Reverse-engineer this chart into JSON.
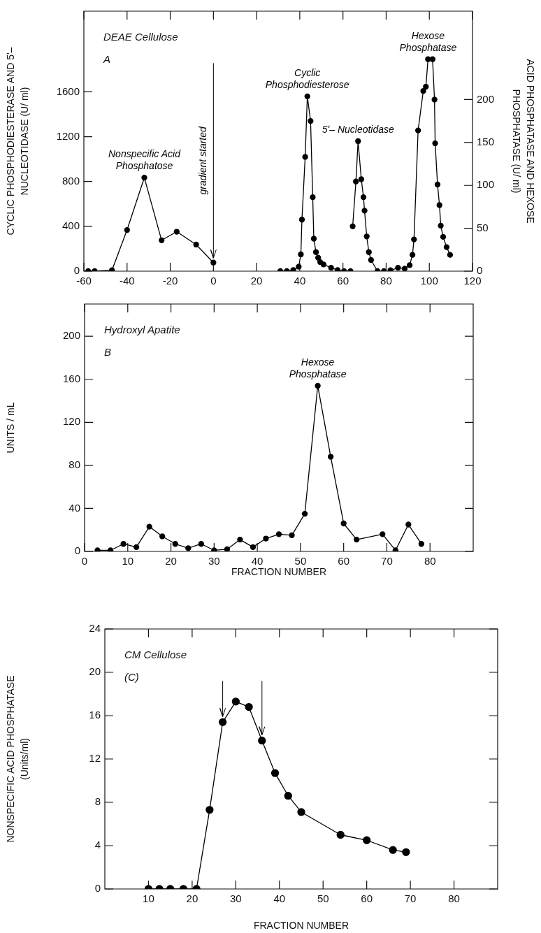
{
  "chart_data": [
    {
      "type": "line",
      "annotations": [
        "DEAE Cellulose",
        "A"
      ],
      "ylabel": "CYCLIC PHOSPHODIESTERASE AND 5ʹ– NUCLEOTIDASE (U/ ml)",
      "y2label": "ACID PHOSPHATASE AND HEXOSE PHOSPHATASE (U/ ml)",
      "xlim": [
        -60,
        120
      ],
      "xticks": [
        -60,
        -40,
        -20,
        0,
        20,
        40,
        60,
        80,
        100,
        120
      ],
      "ylim": [
        0,
        2320
      ],
      "yticks": [
        0,
        400,
        800,
        1200,
        1600
      ],
      "y2lim": [
        0,
        303
      ],
      "y2ticks": [
        0,
        50,
        100,
        150,
        200
      ],
      "marker": "circle",
      "ref_lines": [
        {
          "axis": "x",
          "value": 0,
          "label": "gradient started"
        }
      ],
      "series": [
        {
          "name": "Nonspecific Acid Phosphatose",
          "color": "#000000",
          "axis": "y2",
          "x": [
            -58,
            -55,
            -47,
            -40,
            -32,
            -24,
            -17,
            -8,
            0
          ],
          "values": [
            0,
            0,
            1,
            48,
            109,
            36,
            46,
            31,
            10
          ]
        },
        {
          "name": "Cyclic Phosphodiesterose",
          "color": "#000000",
          "x": [
            31,
            34,
            37,
            39.5,
            40.5,
            41,
            42.5,
            43.5,
            45,
            46,
            46.5,
            47.5,
            48.5,
            49.5,
            51,
            54.5,
            57.5,
            60.5,
            63.5
          ],
          "values": [
            0,
            0,
            10,
            40,
            150,
            460,
            1020,
            1560,
            1340,
            660,
            290,
            170,
            120,
            80,
            60,
            30,
            10,
            0,
            0
          ]
        },
        {
          "name": "5ʹ– Nucleotidase",
          "color": "#000000",
          "x": [
            64.5,
            66,
            67,
            68.5,
            69.5,
            70,
            71,
            72,
            73,
            76,
            79
          ],
          "values": [
            400,
            800,
            1160,
            820,
            660,
            540,
            310,
            170,
            100,
            0,
            0
          ]
        },
        {
          "name": "Hexose Phosphatase",
          "color": "#000000",
          "axis": "y2",
          "x": [
            82,
            85.5,
            88.6,
            90.9,
            92.2,
            92.9,
            94.8,
            97.2,
            98.4,
            99.4,
            101.5,
            102.4,
            102.7,
            103.8,
            104.7,
            105.3,
            106.4,
            108,
            109.6
          ],
          "values": [
            1,
            4,
            3,
            7,
            19,
            37,
            164,
            210,
            215,
            247,
            247,
            200,
            149,
            101,
            77,
            53,
            40,
            28,
            19
          ]
        }
      ]
    },
    {
      "type": "line",
      "annotations": [
        "Hydroxyl Apatite",
        "B"
      ],
      "ylabel": "UNITS / mL",
      "xlabel": "FRACTION NUMBER",
      "xlim": [
        0,
        90
      ],
      "xticks": [
        0,
        10,
        20,
        30,
        40,
        50,
        60,
        70,
        80
      ],
      "ylim": [
        0,
        230
      ],
      "yticks": [
        0,
        40,
        80,
        120,
        160,
        200
      ],
      "marker": "circle",
      "series": [
        {
          "name": "Hexose Phosphatase",
          "color": "#000000",
          "x": [
            3,
            6,
            9,
            12,
            15,
            18,
            21,
            24,
            27,
            30,
            33,
            36,
            39,
            42,
            45,
            48,
            51,
            54,
            57,
            60,
            63,
            69,
            72,
            75,
            78
          ],
          "values": [
            1,
            1,
            7,
            4,
            23,
            14,
            7,
            3,
            7,
            1,
            2,
            11,
            4,
            12,
            16,
            15,
            35,
            154,
            88,
            26,
            11,
            16,
            1,
            25,
            7
          ]
        }
      ]
    },
    {
      "type": "line",
      "annotations": [
        "CM Cellulose",
        "(C)"
      ],
      "ylabel": "NONSPECIFIC ACID PHOSPHATASE (Units/ml)",
      "xlabel": "FRACTION NUMBER",
      "xlim": [
        0,
        90
      ],
      "xticks": [
        10,
        20,
        30,
        40,
        50,
        60,
        70,
        80
      ],
      "ylim": [
        0,
        24
      ],
      "yticks": [
        0,
        4,
        8,
        12,
        16,
        20,
        24
      ],
      "marker": "circle",
      "ref_lines": [
        {
          "axis": "x",
          "value": 27
        },
        {
          "axis": "x",
          "value": 36
        }
      ],
      "series": [
        {
          "color": "#000000",
          "x": [
            10,
            12.5,
            15,
            18,
            21,
            24,
            27,
            30,
            33,
            36,
            39,
            42,
            45,
            54,
            60,
            66,
            69
          ],
          "values": [
            0,
            0,
            0,
            0,
            0,
            7.3,
            15.4,
            17.3,
            16.8,
            13.7,
            10.7,
            8.6,
            7.1,
            5,
            4.5,
            3.6,
            3.4
          ]
        }
      ]
    }
  ]
}
